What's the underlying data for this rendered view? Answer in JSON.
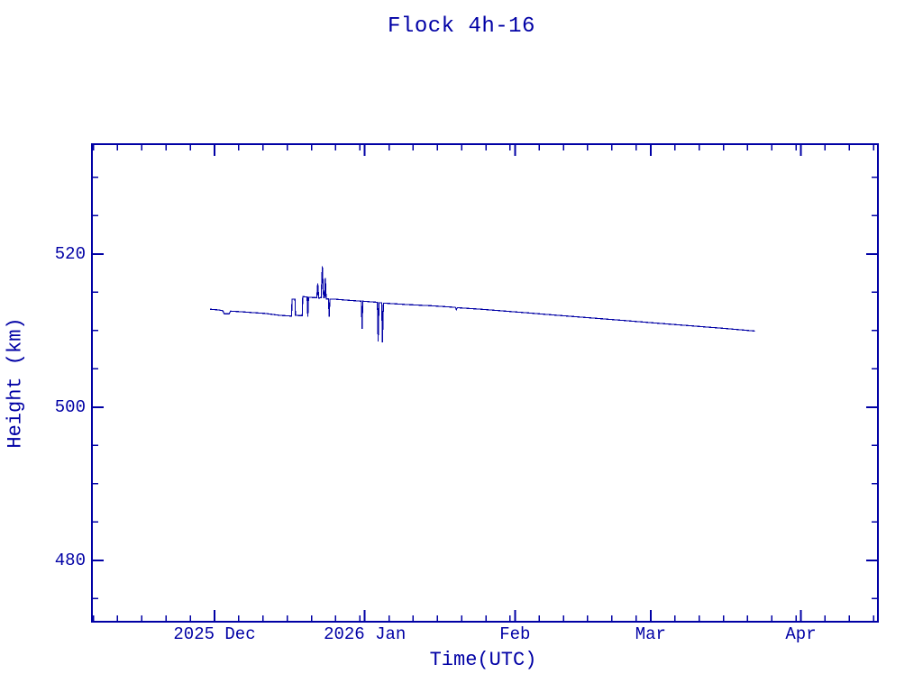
{
  "accent_color": "#0000a5",
  "background_color": "#ffffff",
  "chart_data": {
    "type": "line",
    "title": "Flock 4h-16",
    "xlabel": "Time(UTC)",
    "ylabel": "Height (km)",
    "line_color": "#0000a5",
    "grid": false,
    "legend": "none",
    "x_unit": "days since 2025-12-01",
    "x_range": [
      -25.3,
      136.9
    ],
    "y_range": [
      472.0,
      534.35
    ],
    "x_major_ticks": [
      {
        "day": 0,
        "label": "2025 Dec"
      },
      {
        "day": 31,
        "label": "2026 Jan"
      },
      {
        "day": 62,
        "label": "Feb"
      },
      {
        "day": 90,
        "label": "Mar"
      },
      {
        "day": 121,
        "label": "Apr"
      }
    ],
    "x_minor_ticks": [
      -25,
      -20,
      -15,
      -10,
      -5,
      5,
      10,
      15,
      20,
      25,
      30,
      36,
      41,
      46,
      51,
      56,
      61,
      67,
      72,
      77,
      82,
      87,
      95,
      100,
      105,
      110,
      115,
      120,
      126,
      131,
      136
    ],
    "y_major_ticks": [
      {
        "value": 480,
        "label": "480"
      },
      {
        "value": 500,
        "label": "500"
      },
      {
        "value": 520,
        "label": "520"
      }
    ],
    "y_minor_ticks": [
      475,
      485,
      490,
      495,
      505,
      510,
      515,
      525,
      530
    ],
    "series": [
      {
        "name": "height",
        "points": [
          [
            -0.9,
            512.8
          ],
          [
            0.9,
            512.7
          ],
          [
            1.7,
            512.6
          ],
          [
            2.0,
            512.2
          ],
          [
            3.0,
            512.2
          ],
          [
            3.3,
            512.55
          ],
          [
            4.5,
            512.5
          ],
          [
            6.0,
            512.45
          ],
          [
            8.0,
            512.35
          ],
          [
            10.5,
            512.25
          ],
          [
            13.5,
            512.0
          ],
          [
            15.9,
            511.9
          ],
          [
            16.0,
            514.1
          ],
          [
            16.6,
            514.1
          ],
          [
            16.7,
            512.0
          ],
          [
            18.1,
            511.95
          ],
          [
            18.2,
            514.45
          ],
          [
            19.1,
            514.4
          ],
          [
            19.25,
            511.8
          ],
          [
            19.4,
            514.35
          ],
          [
            21.1,
            514.3
          ],
          [
            21.3,
            516.2
          ],
          [
            21.5,
            514.25
          ],
          [
            22.0,
            514.3
          ],
          [
            22.25,
            518.4
          ],
          [
            22.5,
            514.3
          ],
          [
            22.7,
            514.3
          ],
          [
            22.85,
            516.9
          ],
          [
            23.05,
            514.15
          ],
          [
            23.5,
            514.15
          ],
          [
            23.65,
            511.8
          ],
          [
            23.8,
            514.1
          ],
          [
            25.0,
            514.1
          ],
          [
            27.0,
            514.0
          ],
          [
            30.3,
            513.85
          ],
          [
            30.45,
            510.25
          ],
          [
            30.6,
            513.85
          ],
          [
            33.6,
            513.7
          ],
          [
            33.75,
            508.6
          ],
          [
            33.95,
            513.65
          ],
          [
            34.5,
            513.65
          ],
          [
            34.65,
            508.45
          ],
          [
            34.85,
            513.6
          ],
          [
            40.0,
            513.4
          ],
          [
            45.0,
            513.25
          ],
          [
            49.7,
            513.05
          ],
          [
            49.9,
            512.75
          ],
          [
            50.1,
            513.0
          ],
          [
            55.0,
            512.8
          ],
          [
            60.0,
            512.55
          ],
          [
            65.0,
            512.3
          ],
          [
            70.0,
            512.05
          ],
          [
            75.0,
            511.8
          ],
          [
            80.0,
            511.55
          ],
          [
            85.0,
            511.3
          ],
          [
            90.0,
            511.05
          ],
          [
            95.0,
            510.8
          ],
          [
            100.0,
            510.55
          ],
          [
            105.0,
            510.3
          ],
          [
            111.5,
            509.95
          ]
        ]
      }
    ]
  }
}
